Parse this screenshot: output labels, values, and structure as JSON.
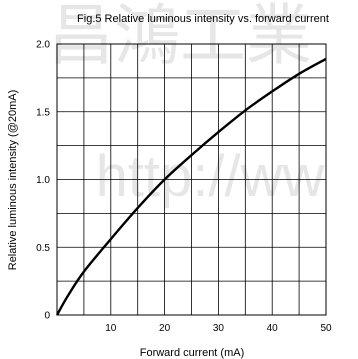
{
  "watermark": {
    "text_top": "昌鴻工業",
    "text_mid": "http://ww"
  },
  "chart_data": {
    "type": "line",
    "title": "Fig.5 Relative luminous intensity vs. forward current",
    "xlabel": "Forward current (mA)",
    "ylabel": "Relative luminous intensity (@20mA)",
    "xlim": [
      0,
      50
    ],
    "ylim": [
      0,
      2.0
    ],
    "x_ticks": [
      10,
      20,
      30,
      40,
      50
    ],
    "x_tick_labels": [
      "10",
      "20",
      "30",
      "40",
      "50"
    ],
    "y_ticks": [
      0,
      0.5,
      1.0,
      1.5,
      2.0
    ],
    "y_tick_labels": [
      "0",
      "0.5",
      "1.0",
      "1.5",
      "2.0"
    ],
    "grid": true,
    "x_gridlines": [
      5,
      10,
      15,
      20,
      25,
      30,
      35,
      40,
      45
    ],
    "y_gridlines": [
      0.25,
      0.5,
      0.75,
      1.0,
      1.25,
      1.5,
      1.75
    ],
    "series": [
      {
        "color": "#000000",
        "x": [
          0,
          2,
          5,
          10,
          15,
          20,
          25,
          30,
          35,
          40,
          45,
          50
        ],
        "y": [
          0,
          0.14,
          0.32,
          0.56,
          0.79,
          1.0,
          1.18,
          1.35,
          1.51,
          1.65,
          1.78,
          1.89
        ]
      }
    ]
  }
}
